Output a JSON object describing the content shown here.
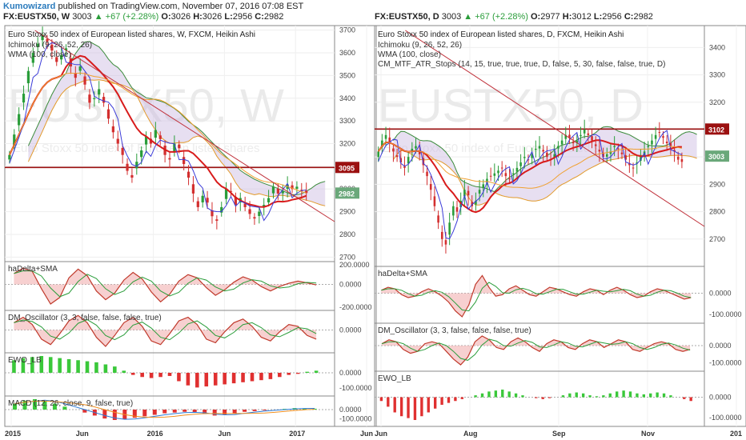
{
  "header": {
    "author": "Kumowizard",
    "published": "published on TradingView.com, November 07, 2016 07:08 EST"
  },
  "left_symbol": {
    "symbol": "FX:EUSTX50, W",
    "last": "3003",
    "change": "▲ +67 (+2.28%)",
    "o_label": "O:",
    "o": "3026",
    "h_label": "H:",
    "h": "3026",
    "l_label": "L:",
    "l": "2956",
    "c_label": "C:",
    "c": "2982"
  },
  "right_symbol": {
    "symbol": "FX:EUSTX50, D",
    "last": "3003",
    "change": "▲ +67 (+2.28%)",
    "o_label": "O:",
    "o": "2977",
    "h_label": "H:",
    "h": "3012",
    "l_label": "L:",
    "l": "2956",
    "c_label": "C:",
    "c": "2982"
  },
  "colors": {
    "up": "#2a9d3a",
    "down": "#d32f2f",
    "kijun": "#d81b1b",
    "tenkan": "#3a3ad8",
    "cloud": "#c9b8e0",
    "wma": "#f0a030",
    "resistance": "#9b1010",
    "trend": "#c0303a"
  },
  "chart_data": [
    {
      "type": "candlestick",
      "title": "Euro Stoxx 50 index of European listed shares, W, FXCM, Heikin Ashi",
      "watermark": "EUSTX50, W",
      "watermark_sub": "Euro Stoxx 50 index of European listed shares",
      "indicators": [
        "Ichimoku (9, 26, 52, 26)",
        "WMA (100, close)"
      ],
      "x_ticks": [
        "2015",
        "Jun",
        "2016",
        "Jun",
        "2017",
        "Jun"
      ],
      "y_ticks": [
        2700,
        2800,
        2900,
        3000,
        3100,
        3200,
        3300,
        3400,
        3500,
        3600,
        3700
      ],
      "ylim": [
        2680,
        3720
      ],
      "price_labels": [
        {
          "value": 3095,
          "text": "3095"
        },
        {
          "value": 2982,
          "text": "2982"
        }
      ],
      "closes": [
        3150,
        3240,
        3330,
        3420,
        3520,
        3600,
        3640,
        3680,
        3650,
        3610,
        3560,
        3590,
        3620,
        3540,
        3490,
        3540,
        3460,
        3380,
        3400,
        3440,
        3380,
        3310,
        3250,
        3200,
        3150,
        3080,
        3050,
        3120,
        3170,
        3230,
        3200,
        3260,
        3220,
        3150,
        3130,
        3200,
        3180,
        3110,
        3050,
        2980,
        2920,
        2970,
        2940,
        2880,
        2860,
        2920,
        3000,
        2990,
        2930,
        2960,
        2920,
        2890,
        2870,
        2900,
        2930,
        2960,
        3010,
        2980,
        2990,
        3020,
        3000,
        3010,
        2990,
        2982
      ],
      "panels": [
        {
          "title": "haDelta+SMA",
          "ticks": [
            "200.0000",
            "0.0000",
            "-200.0000"
          ],
          "values": [
            100,
            150,
            120,
            -40,
            -180,
            -120,
            60,
            140,
            80,
            -60,
            -140,
            -80,
            40,
            110,
            50,
            -70,
            -160,
            -90,
            30,
            90,
            60,
            -30,
            -100,
            -50,
            20,
            70,
            40,
            -20,
            -60,
            -20,
            10,
            30,
            15,
            -5
          ]
        },
        {
          "title": "DM_Oscillator (3, 3, false, false, false, true)",
          "ticks": [
            "0.0000"
          ],
          "values": [
            40,
            70,
            30,
            -50,
            -80,
            -20,
            50,
            80,
            40,
            -40,
            -90,
            -30,
            40,
            70,
            20,
            -60,
            -80,
            -20,
            50,
            70,
            30,
            -50,
            -70,
            -10,
            40,
            60,
            20,
            -40,
            -60,
            -10,
            30,
            20,
            -30,
            -50
          ]
        },
        {
          "title": "EWO_LB",
          "ticks": [
            "0.0000",
            "-100.0000"
          ],
          "values": [
            120,
            140,
            150,
            160,
            150,
            140,
            130,
            120,
            110,
            100,
            80,
            60,
            20,
            -20,
            -40,
            -50,
            -40,
            -30,
            -80,
            -120,
            -140,
            -130,
            -120,
            -110,
            -100,
            -90,
            -80,
            -70,
            -60,
            -40,
            -20,
            -10,
            10,
            20
          ]
        },
        {
          "title": "MACD (12, 26, close, 9, false, true)",
          "ticks": [
            "0.0000",
            "-100.0000"
          ],
          "values": [
            40,
            60,
            70,
            60,
            40,
            20,
            0,
            -20,
            -40,
            -60,
            -70,
            -65,
            -55,
            -45,
            -35,
            -25,
            -20,
            -15,
            -20,
            -30,
            -40,
            -35,
            -25,
            -15,
            -10,
            -5,
            0,
            5,
            10,
            8,
            6
          ]
        }
      ]
    },
    {
      "type": "candlestick",
      "title": "Euro Stoxx 50 index of European listed shares, D, FXCM, Heikin Ashi",
      "watermark": "EUSTX50, D",
      "watermark_sub": "Euro Stoxx 50 index of European listed shares",
      "indicators": [
        "Ichimoku (9, 26, 52, 26)",
        "WMA (100, close)",
        "CM_MTF_ATR_Stops (14, 15, true, true, true, D, false, 5, 30, false, false, true, D)"
      ],
      "x_ticks": [
        "Jun",
        "Aug",
        "Sep",
        "Nov",
        "201"
      ],
      "y_ticks": [
        2700,
        2800,
        2900,
        3000,
        3100,
        3200,
        3300,
        3400
      ],
      "ylim": [
        2600,
        3480
      ],
      "price_labels": [
        {
          "value": 3102,
          "text": "3102"
        },
        {
          "value": 3003,
          "text": "3003"
        }
      ],
      "closes": [
        3020,
        3060,
        3080,
        3050,
        3020,
        3000,
        2980,
        2960,
        3000,
        3030,
        3040,
        3010,
        2970,
        2930,
        2880,
        2820,
        2760,
        2700,
        2680,
        2760,
        2820,
        2800,
        2840,
        2880,
        2860,
        2820,
        2840,
        2880,
        2900,
        2920,
        2930,
        2940,
        2950,
        2960,
        2930,
        2920,
        2940,
        2960,
        2980,
        3000,
        2990,
        3010,
        3030,
        3040,
        3020,
        3000,
        2990,
        3010,
        3040,
        3060,
        3080,
        3070,
        3050,
        3060,
        3080,
        3100,
        3080,
        3060,
        3040,
        3020,
        3000,
        3010,
        3020,
        3040,
        3030,
        3010,
        2990,
        2970,
        2960,
        2980,
        3000,
        3020,
        3040,
        3060,
        3080,
        3090,
        3070,
        3050,
        3040,
        3020,
        2990,
        2982
      ],
      "panels": [
        {
          "title": "haDelta+SMA",
          "ticks": [
            "0.0000",
            "-100.0000"
          ],
          "values": [
            20,
            40,
            30,
            -10,
            -30,
            -20,
            10,
            30,
            10,
            -20,
            -60,
            -120,
            -160,
            -80,
            60,
            120,
            40,
            -20,
            -10,
            30,
            50,
            20,
            -10,
            -20,
            10,
            40,
            30,
            10,
            -10,
            -20,
            10,
            30,
            20,
            -10,
            20,
            40,
            20,
            -10,
            -30,
            -20,
            10,
            30,
            20,
            0,
            -20,
            -40,
            -30
          ]
        },
        {
          "title": "DM_Oscillator (3, 3, false, false, false, true)",
          "ticks": [
            "0.0000",
            "-100.0000"
          ],
          "values": [
            10,
            30,
            20,
            -20,
            -40,
            -30,
            10,
            20,
            10,
            -30,
            -70,
            -100,
            -60,
            20,
            50,
            30,
            -10,
            -20,
            20,
            40,
            20,
            -10,
            -30,
            10,
            30,
            20,
            -10,
            -20,
            10,
            30,
            20,
            -10,
            10,
            30,
            20,
            -20,
            -30,
            -10,
            10,
            20,
            10,
            -20,
            -30,
            -20
          ]
        },
        {
          "title": "EWO_LB",
          "ticks": [
            "0.0000",
            "-100.0000"
          ],
          "values": [
            -20,
            -50,
            -80,
            -100,
            -110,
            -120,
            -100,
            -80,
            -60,
            -40,
            -30,
            -20,
            -10,
            0,
            10,
            20,
            30,
            35,
            40,
            30,
            20,
            10,
            0,
            -5,
            -10,
            -5,
            0,
            10,
            20,
            25,
            20,
            10,
            5,
            10,
            20,
            30,
            35,
            30,
            20,
            15,
            20,
            25,
            20,
            10,
            0,
            -10,
            -20
          ]
        }
      ]
    }
  ]
}
